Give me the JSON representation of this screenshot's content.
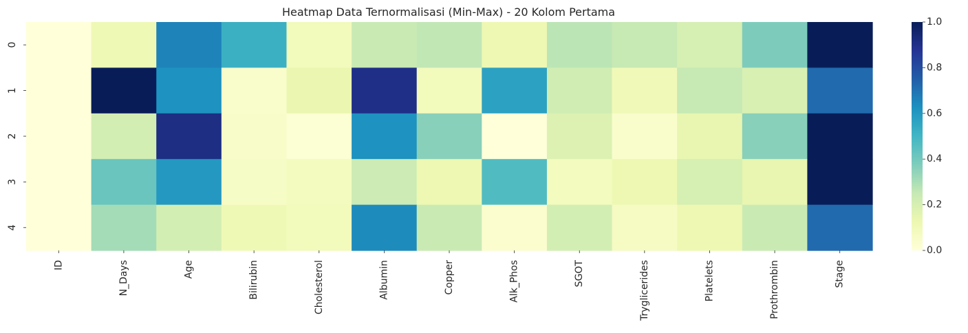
{
  "chart_data": {
    "type": "heatmap",
    "title": "Heatmap Data Ternormalisasi (Min-Max) - 20 Kolom Pertama",
    "xlabel": "",
    "ylabel": "",
    "colormap": "YlGnBu",
    "vmin": 0.0,
    "vmax": 1.0,
    "rows": [
      "0",
      "1",
      "2",
      "3",
      "4"
    ],
    "columns": [
      "ID",
      "N_Days",
      "Age",
      "Bilirubin",
      "Cholesterol",
      "Albumin",
      "Copper",
      "Alk_Phos",
      "SGOT",
      "Tryglicerides",
      "Platelets",
      "Prothrombin",
      "Stage"
    ],
    "values": [
      [
        0.0,
        0.11,
        0.66,
        0.52,
        0.09,
        0.24,
        0.26,
        0.12,
        0.27,
        0.25,
        0.2,
        0.38,
        1.0
      ],
      [
        0.0,
        1.0,
        0.62,
        0.04,
        0.13,
        0.9,
        0.09,
        0.57,
        0.22,
        0.1,
        0.25,
        0.19,
        0.72
      ],
      [
        0.0,
        0.21,
        0.91,
        0.05,
        0.02,
        0.62,
        0.36,
        0.0,
        0.18,
        0.04,
        0.14,
        0.36,
        1.0
      ],
      [
        0.0,
        0.42,
        0.6,
        0.06,
        0.08,
        0.23,
        0.12,
        0.47,
        0.08,
        0.12,
        0.2,
        0.14,
        1.0
      ],
      [
        0.0,
        0.31,
        0.21,
        0.11,
        0.09,
        0.64,
        0.24,
        0.03,
        0.21,
        0.07,
        0.12,
        0.24,
        0.72
      ]
    ],
    "colorbar_ticks": [
      "0.0",
      "0.2",
      "0.4",
      "0.6",
      "0.8",
      "1.0"
    ]
  }
}
